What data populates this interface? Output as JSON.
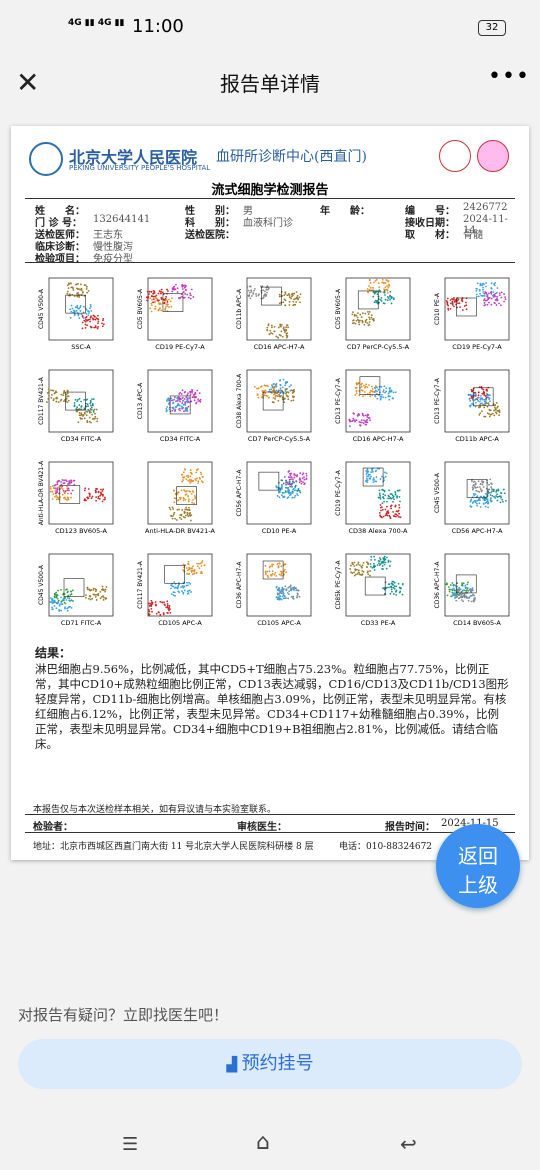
{
  "status": {
    "time": "11:00",
    "battery": "32"
  },
  "header": {
    "title": "报告单详情"
  },
  "report": {
    "hospital": "北京大学人民医院",
    "center": "血研所诊断中心(西直门)",
    "hospital_en": "PEKING UNIVERSITY PEOPLE'S HOSPITAL",
    "title": "流式细胞学检测报告",
    "fields": [
      {
        "label": "姓　　名："
      },
      {
        "label": "性　　别：",
        "value": "男"
      },
      {
        "label": "年　　龄："
      },
      {
        "label": "编　　号：",
        "value": "2426772"
      },
      {
        "label": "门 诊 号：",
        "value": "132644141"
      },
      {
        "label": "科　　别：",
        "value": "血液科门诊"
      },
      {
        "label": "接收日期：",
        "value": "2024-11-14"
      },
      {
        "label": "送检医师：",
        "value": "王志东"
      },
      {
        "label": "送检医院："
      },
      {
        "label": "取　　材：",
        "value": "骨髓"
      },
      {
        "label": "临床诊断：",
        "value": "慢性腹泻"
      },
      {
        "label": "检验项目：",
        "value": "免疫分型"
      }
    ],
    "plots": [
      [
        {
          "x": "SSC-A",
          "y": "CD45 V500-A"
        },
        {
          "x": "CD19 PE-Cy7-A",
          "y": "CD5 BV605-A"
        },
        {
          "x": "CD16 APC-H7-A",
          "y": "CD11b APC-A"
        },
        {
          "x": "CD7 PerCP-Cy5.5-A",
          "y": "CD5 BV605-A"
        },
        {
          "x": "CD19 PE-Cy7-A",
          "y": "CD10 PE-A"
        }
      ],
      [
        {
          "x": "CD34 FITC-A",
          "y": "CD117 BV421-A"
        },
        {
          "x": "CD34 FITC-A",
          "y": "CD13 APC-A"
        },
        {
          "x": "CD7 PerCP-Cy5.5-A",
          "y": "CD38 Alexa 700-A"
        },
        {
          "x": "CD16 APC-H7-A",
          "y": "CD13 PE-Cy7-A"
        },
        {
          "x": "CD11b APC-A",
          "y": "CD13 PE-Cy7-A"
        }
      ],
      [
        {
          "x": "CD123 BV605-A",
          "y": "Anti-HLA-DR BV421-A"
        },
        {
          "x": "Anti-HLA-DR BV421-A"
        },
        {
          "x": "CD10 PE-A",
          "y": "CD56 APC-H7-A"
        },
        {
          "x": "CD38 Alexa 700-A",
          "y": "CD19 PE-Cy7-A"
        },
        {
          "x": "CD56 APC-H7-A",
          "y": "CD45 V500-A"
        }
      ],
      [
        {
          "x": "CD71 FITC-A",
          "y": "CD45 V500-A"
        },
        {
          "x": "CD105 APC-A",
          "y": "CD117 BV421-A"
        },
        {
          "x": "CD105 APC-A",
          "y": "CD36 APC-H7-A"
        },
        {
          "x": "CD33 PE-A",
          "y": "CD85k PE-Cy7-A"
        },
        {
          "x": "CD14 BV605-A",
          "y": "CD36 APC-H7-A"
        }
      ]
    ],
    "result_label": "结果：",
    "result_text": "淋巴细胞占9.56%，比例减低，其中CD5+T细胞占75.23%。粒细胞占77.75%，比例正常，其中CD10+成熟粒细胞比例正常，CD13表达减弱，CD16/CD13及CD11b/CD13图形轻度异常，CD11b-细胞比例增高。单核细胞占3.09%，比例正常，表型未见明显异常。有核红细胞占6.12%，比例正常，表型未见异常。CD34+CD117+幼稚髓细胞占0.39%，比例正常，表型未见明显异常。CD34+细胞中CD19+B祖细胞占2.81%，比例减低。请结合临床。",
    "disclaimer": "本报告仅与本次送检样本相关，如有异议请与本实验室联系。",
    "inspector_label": "检验者：",
    "reviewer_label": "审核医生：",
    "time_label": "报告时间：",
    "report_time": "2024-11-15",
    "address": "地址：北京市西城区西直门南大街 11 号北京大学人民医院科研楼 8 层",
    "phone": "电话：010-88324672"
  },
  "back_button": [
    "返回",
    "上级"
  ],
  "question": "对报告有疑问？立即找医生吧！",
  "appointment": "预约挂号"
}
